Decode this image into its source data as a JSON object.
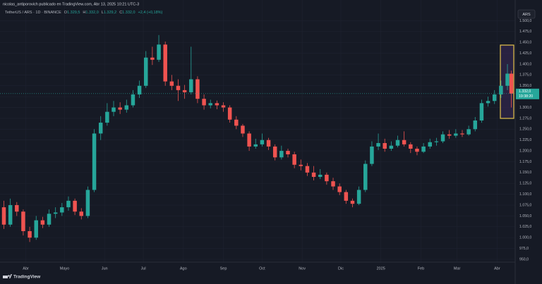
{
  "header": {
    "author_line": "nicolas_antiporovich publicado en TradingView.com, Abr 13, 2025 10:21 UTC-3",
    "symbol": "TetherUS / ARS · 1D · BINANCE",
    "ohlc": [
      {
        "key": "O",
        "value": "1.329,5"
      },
      {
        "key": "H",
        "value": "1.332,0"
      },
      {
        "key": "L",
        "value": "1.329,2"
      },
      {
        "key": "C",
        "value": "1.332,0"
      }
    ],
    "change": "+2,4 (+0,18%)"
  },
  "currency": "ARS",
  "branding": "TradingView",
  "chart_data": {
    "type": "candlestick",
    "up_color": "#26a69a",
    "down_color": "#ef5350",
    "grid": true,
    "x": [
      -17,
      -12,
      -7,
      -2,
      3,
      8,
      13,
      18,
      23,
      28,
      33,
      38,
      43,
      48,
      53,
      58,
      63,
      68,
      73,
      78,
      83,
      88,
      93,
      98,
      103,
      108,
      113,
      118,
      123,
      128,
      133,
      138,
      143,
      148,
      153,
      158,
      163,
      168,
      173,
      178,
      183,
      188,
      193,
      198,
      203,
      208,
      213,
      218,
      223,
      228,
      233,
      238,
      243,
      248,
      253,
      258,
      263,
      268,
      273,
      278,
      283,
      288,
      293,
      298,
      303,
      308,
      313,
      318,
      323,
      328,
      333,
      338,
      343,
      348,
      353,
      358,
      363,
      368,
      373,
      376
    ],
    "open": [
      1070,
      1030,
      1075,
      1060,
      1015,
      1000,
      1040,
      1030,
      1055,
      1058,
      1070,
      1085,
      1060,
      1050,
      1110,
      1240,
      1265,
      1290,
      1300,
      1295,
      1305,
      1330,
      1350,
      1415,
      1410,
      1445,
      1360,
      1350,
      1340,
      1335,
      1365,
      1320,
      1305,
      1310,
      1305,
      1300,
      1272,
      1258,
      1240,
      1210,
      1215,
      1225,
      1210,
      1185,
      1200,
      1192,
      1168,
      1165,
      1150,
      1140,
      1145,
      1130,
      1118,
      1105,
      1085,
      1078,
      1110,
      1170,
      1210,
      1218,
      1205,
      1212,
      1225,
      1215,
      1205,
      1198,
      1210,
      1220,
      1222,
      1238,
      1235,
      1240,
      1238,
      1250,
      1270,
      1310,
      1315,
      1330,
      1350,
      1378
    ],
    "high": [
      1085,
      1090,
      1082,
      1065,
      1025,
      1050,
      1048,
      1065,
      1070,
      1080,
      1095,
      1090,
      1068,
      1118,
      1250,
      1280,
      1310,
      1315,
      1312,
      1318,
      1340,
      1362,
      1430,
      1440,
      1467,
      1452,
      1375,
      1365,
      1352,
      1440,
      1372,
      1330,
      1318,
      1316,
      1312,
      1305,
      1280,
      1262,
      1245,
      1228,
      1240,
      1230,
      1215,
      1212,
      1205,
      1198,
      1180,
      1172,
      1165,
      1158,
      1150,
      1138,
      1125,
      1110,
      1090,
      1118,
      1178,
      1222,
      1240,
      1228,
      1222,
      1235,
      1245,
      1220,
      1210,
      1218,
      1228,
      1230,
      1245,
      1248,
      1250,
      1248,
      1258,
      1278,
      1318,
      1325,
      1340,
      1362,
      1400,
      1385
    ],
    "low": [
      1020,
      1025,
      1050,
      1005,
      990,
      995,
      1022,
      1025,
      1045,
      1050,
      1062,
      1052,
      1042,
      1045,
      1105,
      1225,
      1258,
      1280,
      1285,
      1288,
      1300,
      1322,
      1345,
      1398,
      1405,
      1350,
      1340,
      1315,
      1320,
      1330,
      1310,
      1295,
      1298,
      1296,
      1290,
      1265,
      1250,
      1232,
      1200,
      1205,
      1210,
      1202,
      1178,
      1180,
      1185,
      1160,
      1155,
      1142,
      1132,
      1135,
      1122,
      1110,
      1098,
      1078,
      1070,
      1075,
      1105,
      1165,
      1202,
      1198,
      1200,
      1208,
      1210,
      1195,
      1190,
      1195,
      1205,
      1212,
      1218,
      1228,
      1230,
      1232,
      1235,
      1245,
      1265,
      1302,
      1308,
      1322,
      1340,
      1300
    ],
    "close": [
      1030,
      1075,
      1060,
      1015,
      1000,
      1040,
      1030,
      1055,
      1058,
      1070,
      1085,
      1060,
      1050,
      1110,
      1240,
      1265,
      1290,
      1300,
      1295,
      1305,
      1330,
      1350,
      1415,
      1410,
      1445,
      1360,
      1350,
      1340,
      1335,
      1365,
      1320,
      1305,
      1310,
      1305,
      1300,
      1272,
      1258,
      1240,
      1210,
      1215,
      1225,
      1210,
      1185,
      1200,
      1192,
      1168,
      1165,
      1150,
      1140,
      1145,
      1130,
      1118,
      1105,
      1085,
      1078,
      1110,
      1170,
      1210,
      1218,
      1205,
      1212,
      1225,
      1215,
      1205,
      1198,
      1210,
      1220,
      1222,
      1238,
      1235,
      1240,
      1238,
      1250,
      1270,
      1310,
      1315,
      1330,
      1350,
      1378,
      1332
    ],
    "xlim": [
      -20,
      379
    ],
    "ylim": [
      943.5,
      1512
    ],
    "xticks": [
      {
        "value": 0,
        "label": "Abr"
      },
      {
        "value": 30,
        "label": "Mayo"
      },
      {
        "value": 61,
        "label": "Jun"
      },
      {
        "value": 91,
        "label": "Jul"
      },
      {
        "value": 122,
        "label": "Ago"
      },
      {
        "value": 153,
        "label": "Sep"
      },
      {
        "value": 183,
        "label": "Oct"
      },
      {
        "value": 214,
        "label": "Nov"
      },
      {
        "value": 244,
        "label": "Dic"
      },
      {
        "value": 275,
        "label": "2025"
      },
      {
        "value": 306,
        "label": "Feb"
      },
      {
        "value": 334,
        "label": "Mar"
      },
      {
        "value": 365,
        "label": "Abr"
      }
    ],
    "yticks": [
      {
        "value": 950,
        "label": "950,0"
      },
      {
        "value": 975,
        "label": "975,0"
      },
      {
        "value": 1000,
        "label": "1.000,0"
      },
      {
        "value": 1025,
        "label": "1.025,0"
      },
      {
        "value": 1050,
        "label": "1.050,0"
      },
      {
        "value": 1075,
        "label": "1.075,0"
      },
      {
        "value": 1100,
        "label": "1.100,0"
      },
      {
        "value": 1125,
        "label": "1.125,0"
      },
      {
        "value": 1150,
        "label": "1.150,0"
      },
      {
        "value": 1175,
        "label": "1.175,0"
      },
      {
        "value": 1200,
        "label": "1.200,0"
      },
      {
        "value": 1225,
        "label": "1.225,0"
      },
      {
        "value": 1250,
        "label": "1.250,0"
      },
      {
        "value": 1275,
        "label": "1.275,0"
      },
      {
        "value": 1300,
        "label": "1.300,0"
      },
      {
        "value": 1325,
        "label": "1.325,0"
      },
      {
        "value": 1350,
        "label": "1.350,0"
      },
      {
        "value": 1375,
        "label": "1.375,0"
      },
      {
        "value": 1400,
        "label": "1.400,0"
      },
      {
        "value": 1425,
        "label": "1.425,0"
      },
      {
        "value": 1450,
        "label": "1.450,0"
      },
      {
        "value": 1475,
        "label": "1.475,0"
      },
      {
        "value": 1500,
        "label": "1.500,0"
      }
    ],
    "last_price": {
      "value": 1332,
      "label": "1.332,0"
    },
    "countdown": "19:38:20"
  }
}
